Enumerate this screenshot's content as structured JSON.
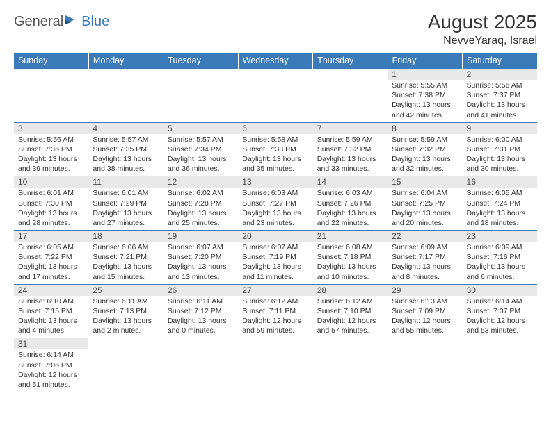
{
  "brand": {
    "part1": "General",
    "part2": "Blue"
  },
  "title": "August 2025",
  "location": "NevveYaraq, Israel",
  "colors": {
    "header_bg": "#3a7ab8",
    "header_fg": "#ffffff",
    "daynum_bg": "#e8e8e8",
    "border": "#3a7ab8",
    "text": "#333333",
    "page_bg": "#ffffff"
  },
  "typography": {
    "base_family": "Arial",
    "cell_fontsize_pt": 8,
    "header_fontsize_pt": 10,
    "title_fontsize_pt": 21
  },
  "day_headers": [
    "Sunday",
    "Monday",
    "Tuesday",
    "Wednesday",
    "Thursday",
    "Friday",
    "Saturday"
  ],
  "weeks": [
    [
      {
        "n": "",
        "sr": "",
        "ss": "",
        "dl": ""
      },
      {
        "n": "",
        "sr": "",
        "ss": "",
        "dl": ""
      },
      {
        "n": "",
        "sr": "",
        "ss": "",
        "dl": ""
      },
      {
        "n": "",
        "sr": "",
        "ss": "",
        "dl": ""
      },
      {
        "n": "",
        "sr": "",
        "ss": "",
        "dl": ""
      },
      {
        "n": "1",
        "sr": "Sunrise: 5:55 AM",
        "ss": "Sunset: 7:38 PM",
        "dl": "Daylight: 13 hours and 42 minutes."
      },
      {
        "n": "2",
        "sr": "Sunrise: 5:56 AM",
        "ss": "Sunset: 7:37 PM",
        "dl": "Daylight: 13 hours and 41 minutes."
      }
    ],
    [
      {
        "n": "3",
        "sr": "Sunrise: 5:56 AM",
        "ss": "Sunset: 7:36 PM",
        "dl": "Daylight: 13 hours and 39 minutes."
      },
      {
        "n": "4",
        "sr": "Sunrise: 5:57 AM",
        "ss": "Sunset: 7:35 PM",
        "dl": "Daylight: 13 hours and 38 minutes."
      },
      {
        "n": "5",
        "sr": "Sunrise: 5:57 AM",
        "ss": "Sunset: 7:34 PM",
        "dl": "Daylight: 13 hours and 36 minutes."
      },
      {
        "n": "6",
        "sr": "Sunrise: 5:58 AM",
        "ss": "Sunset: 7:33 PM",
        "dl": "Daylight: 13 hours and 35 minutes."
      },
      {
        "n": "7",
        "sr": "Sunrise: 5:59 AM",
        "ss": "Sunset: 7:32 PM",
        "dl": "Daylight: 13 hours and 33 minutes."
      },
      {
        "n": "8",
        "sr": "Sunrise: 5:59 AM",
        "ss": "Sunset: 7:32 PM",
        "dl": "Daylight: 13 hours and 32 minutes."
      },
      {
        "n": "9",
        "sr": "Sunrise: 6:00 AM",
        "ss": "Sunset: 7:31 PM",
        "dl": "Daylight: 13 hours and 30 minutes."
      }
    ],
    [
      {
        "n": "10",
        "sr": "Sunrise: 6:01 AM",
        "ss": "Sunset: 7:30 PM",
        "dl": "Daylight: 13 hours and 28 minutes."
      },
      {
        "n": "11",
        "sr": "Sunrise: 6:01 AM",
        "ss": "Sunset: 7:29 PM",
        "dl": "Daylight: 13 hours and 27 minutes."
      },
      {
        "n": "12",
        "sr": "Sunrise: 6:02 AM",
        "ss": "Sunset: 7:28 PM",
        "dl": "Daylight: 13 hours and 25 minutes."
      },
      {
        "n": "13",
        "sr": "Sunrise: 6:03 AM",
        "ss": "Sunset: 7:27 PM",
        "dl": "Daylight: 13 hours and 23 minutes."
      },
      {
        "n": "14",
        "sr": "Sunrise: 6:03 AM",
        "ss": "Sunset: 7:26 PM",
        "dl": "Daylight: 13 hours and 22 minutes."
      },
      {
        "n": "15",
        "sr": "Sunrise: 6:04 AM",
        "ss": "Sunset: 7:25 PM",
        "dl": "Daylight: 13 hours and 20 minutes."
      },
      {
        "n": "16",
        "sr": "Sunrise: 6:05 AM",
        "ss": "Sunset: 7:24 PM",
        "dl": "Daylight: 13 hours and 18 minutes."
      }
    ],
    [
      {
        "n": "17",
        "sr": "Sunrise: 6:05 AM",
        "ss": "Sunset: 7:22 PM",
        "dl": "Daylight: 13 hours and 17 minutes."
      },
      {
        "n": "18",
        "sr": "Sunrise: 6:06 AM",
        "ss": "Sunset: 7:21 PM",
        "dl": "Daylight: 13 hours and 15 minutes."
      },
      {
        "n": "19",
        "sr": "Sunrise: 6:07 AM",
        "ss": "Sunset: 7:20 PM",
        "dl": "Daylight: 13 hours and 13 minutes."
      },
      {
        "n": "20",
        "sr": "Sunrise: 6:07 AM",
        "ss": "Sunset: 7:19 PM",
        "dl": "Daylight: 13 hours and 11 minutes."
      },
      {
        "n": "21",
        "sr": "Sunrise: 6:08 AM",
        "ss": "Sunset: 7:18 PM",
        "dl": "Daylight: 13 hours and 10 minutes."
      },
      {
        "n": "22",
        "sr": "Sunrise: 6:09 AM",
        "ss": "Sunset: 7:17 PM",
        "dl": "Daylight: 13 hours and 8 minutes."
      },
      {
        "n": "23",
        "sr": "Sunrise: 6:09 AM",
        "ss": "Sunset: 7:16 PM",
        "dl": "Daylight: 13 hours and 6 minutes."
      }
    ],
    [
      {
        "n": "24",
        "sr": "Sunrise: 6:10 AM",
        "ss": "Sunset: 7:15 PM",
        "dl": "Daylight: 13 hours and 4 minutes."
      },
      {
        "n": "25",
        "sr": "Sunrise: 6:11 AM",
        "ss": "Sunset: 7:13 PM",
        "dl": "Daylight: 13 hours and 2 minutes."
      },
      {
        "n": "26",
        "sr": "Sunrise: 6:11 AM",
        "ss": "Sunset: 7:12 PM",
        "dl": "Daylight: 13 hours and 0 minutes."
      },
      {
        "n": "27",
        "sr": "Sunrise: 6:12 AM",
        "ss": "Sunset: 7:11 PM",
        "dl": "Daylight: 12 hours and 59 minutes."
      },
      {
        "n": "28",
        "sr": "Sunrise: 6:12 AM",
        "ss": "Sunset: 7:10 PM",
        "dl": "Daylight: 12 hours and 57 minutes."
      },
      {
        "n": "29",
        "sr": "Sunrise: 6:13 AM",
        "ss": "Sunset: 7:09 PM",
        "dl": "Daylight: 12 hours and 55 minutes."
      },
      {
        "n": "30",
        "sr": "Sunrise: 6:14 AM",
        "ss": "Sunset: 7:07 PM",
        "dl": "Daylight: 12 hours and 53 minutes."
      }
    ],
    [
      {
        "n": "31",
        "sr": "Sunrise: 6:14 AM",
        "ss": "Sunset: 7:06 PM",
        "dl": "Daylight: 12 hours and 51 minutes."
      },
      {
        "n": "",
        "sr": "",
        "ss": "",
        "dl": ""
      },
      {
        "n": "",
        "sr": "",
        "ss": "",
        "dl": ""
      },
      {
        "n": "",
        "sr": "",
        "ss": "",
        "dl": ""
      },
      {
        "n": "",
        "sr": "",
        "ss": "",
        "dl": ""
      },
      {
        "n": "",
        "sr": "",
        "ss": "",
        "dl": ""
      },
      {
        "n": "",
        "sr": "",
        "ss": "",
        "dl": ""
      }
    ]
  ]
}
